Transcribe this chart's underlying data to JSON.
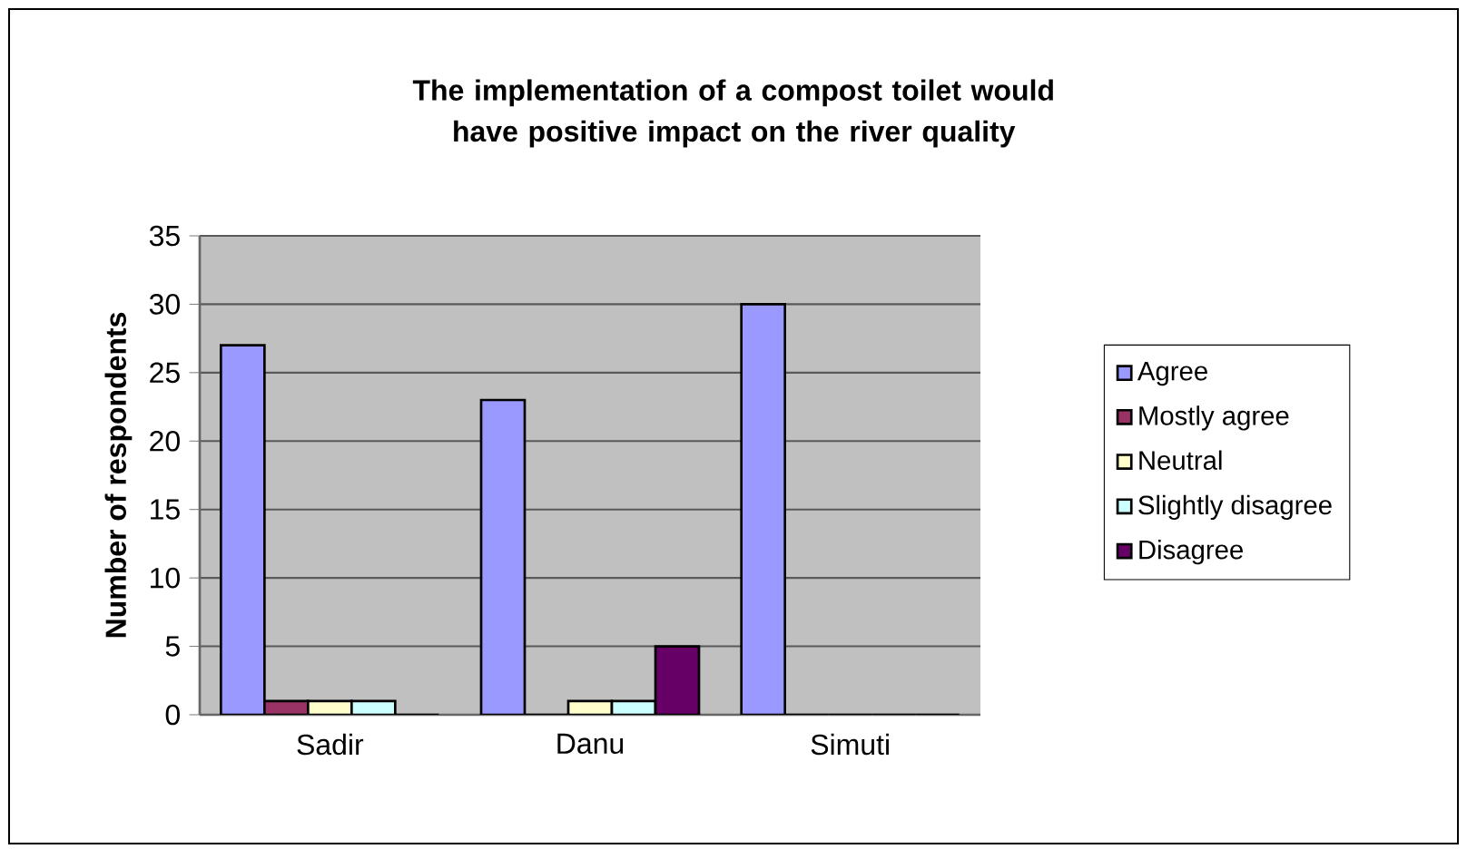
{
  "chart_data": {
    "type": "bar",
    "title": "The implementation of a compost toilet would have positive impact on the river quality",
    "ylabel": "Number of respondents",
    "categories": [
      "Sadir",
      "Danu",
      "Simuti"
    ],
    "series": [
      {
        "name": "Agree",
        "color": "#9999ff",
        "values": [
          27,
          23,
          30
        ]
      },
      {
        "name": "Mostly agree",
        "color": "#993366",
        "values": [
          1,
          0,
          0
        ]
      },
      {
        "name": "Neutral",
        "color": "#ffffcc",
        "values": [
          1,
          1,
          0
        ]
      },
      {
        "name": "Slightly disagree",
        "color": "#ccffff",
        "values": [
          1,
          1,
          0
        ]
      },
      {
        "name": "Disagree",
        "color": "#660066",
        "values": [
          0,
          5,
          0
        ]
      }
    ],
    "ylim": [
      0,
      35
    ],
    "yticks": [
      0,
      5,
      10,
      15,
      20,
      25,
      30,
      35
    ],
    "grid": "y",
    "legend": "right"
  }
}
